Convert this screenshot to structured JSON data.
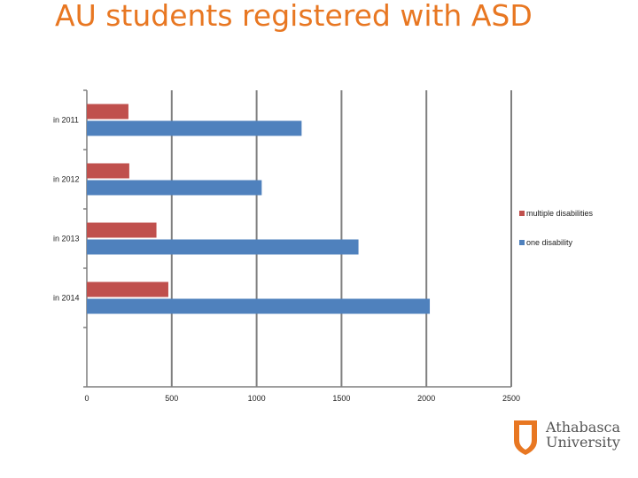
{
  "title": "AU students registered with ASD",
  "logo": {
    "line1": "Athabasca",
    "line2": "University"
  },
  "colors": {
    "title": "#e87722",
    "multiple": "#c0504d",
    "one": "#4f81bd",
    "grid": "#7f7f7f"
  },
  "chart_data": {
    "type": "bar",
    "orientation": "horizontal",
    "title": "",
    "categories": [
      "in 2011",
      "in 2012",
      "in 2013",
      "in 2014"
    ],
    "series": [
      {
        "name": "multiple disabilities",
        "values": [
          245,
          250,
          410,
          480
        ]
      },
      {
        "name": "one disability",
        "values": [
          1265,
          1030,
          1600,
          2020
        ]
      }
    ],
    "x_ticks": [
      "0",
      "500",
      "1000",
      "1500",
      "2000",
      "2500"
    ],
    "xlim": [
      0,
      2500
    ],
    "grid": true,
    "legend_position": "right"
  }
}
